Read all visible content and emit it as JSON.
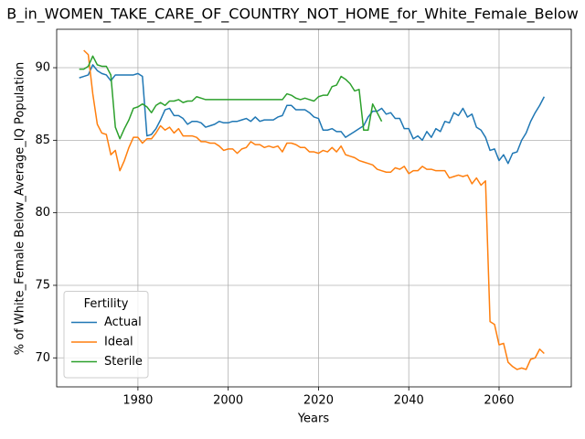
{
  "chart_data": {
    "type": "line",
    "title": "B_in_WOMEN_TAKE_CARE_OF_COUNTRY_NOT_HOME_for_White_Female_Below",
    "xlabel": "Years",
    "ylabel": "% of White_Female Below_Average_IQ Population",
    "legend_title": "Fertility",
    "legend": "lower left",
    "grid": true,
    "xlim": [
      1962,
      2076
    ],
    "ylim": [
      68,
      92.65
    ],
    "xticks": [
      1980,
      2000,
      2020,
      2040,
      2060
    ],
    "yticks": [
      70,
      75,
      80,
      85,
      90
    ],
    "x": [
      1967,
      1968,
      1969,
      1970,
      1971,
      1972,
      1973,
      1974,
      1975,
      1976,
      1977,
      1978,
      1979,
      1980,
      1981,
      1982,
      1983,
      1984,
      1985,
      1986,
      1987,
      1988,
      1989,
      1990,
      1991,
      1992,
      1993,
      1994,
      1995,
      1996,
      1997,
      1998,
      1999,
      2000,
      2001,
      2002,
      2003,
      2004,
      2005,
      2006,
      2007,
      2008,
      2009,
      2010,
      2011,
      2012,
      2013,
      2014,
      2015,
      2016,
      2017,
      2018,
      2019,
      2020,
      2021,
      2022,
      2023,
      2024,
      2025,
      2026,
      2027,
      2028,
      2029,
      2030,
      2031,
      2032,
      2033,
      2034,
      2035,
      2036,
      2037,
      2038,
      2039,
      2040,
      2041,
      2042,
      2043,
      2044,
      2045,
      2046,
      2047,
      2048,
      2049,
      2050,
      2051,
      2052,
      2053,
      2054,
      2055,
      2056,
      2057,
      2058,
      2059,
      2060,
      2061,
      2062,
      2063,
      2064,
      2065,
      2066,
      2067,
      2068,
      2069,
      2070
    ],
    "series": [
      {
        "name": "Actual",
        "color": "#1f77b4",
        "values": [
          89.3,
          89.4,
          89.5,
          90.2,
          89.8,
          89.6,
          89.5,
          89.1,
          89.5,
          89.5,
          89.5,
          89.5,
          89.5,
          89.6,
          89.4,
          85.3,
          85.4,
          85.8,
          86.4,
          87.1,
          87.2,
          86.7,
          86.7,
          86.5,
          86.1,
          86.3,
          86.3,
          86.2,
          85.9,
          86.0,
          86.1,
          86.3,
          86.2,
          86.2,
          86.3,
          86.3,
          86.4,
          86.5,
          86.3,
          86.6,
          86.3,
          86.4,
          86.4,
          86.4,
          86.6,
          86.7,
          87.4,
          87.4,
          87.1,
          87.1,
          87.1,
          86.9,
          86.6,
          86.5,
          85.7,
          85.7,
          85.8,
          85.6,
          85.6,
          85.2,
          85.4,
          85.6,
          85.8,
          86.0,
          86.6,
          87.0,
          87.0,
          87.2,
          86.8,
          86.9,
          86.5,
          86.5,
          85.8,
          85.8,
          85.1,
          85.3,
          85.0,
          85.6,
          85.2,
          85.8,
          85.6,
          86.3,
          86.2,
          86.9,
          86.7,
          87.2,
          86.6,
          86.8,
          85.9,
          85.7,
          85.2,
          84.3,
          84.4,
          83.6,
          84.0,
          83.4,
          84.1,
          84.2,
          85.0,
          85.5,
          86.3,
          86.9,
          87.4,
          88.0
        ]
      },
      {
        "name": "Ideal",
        "color": "#ff7f0e",
        "values": [
          null,
          91.2,
          90.9,
          88.2,
          86.1,
          85.5,
          85.4,
          84.0,
          84.3,
          82.9,
          83.6,
          84.5,
          85.2,
          85.2,
          84.8,
          85.1,
          85.1,
          85.5,
          86.0,
          85.7,
          85.9,
          85.5,
          85.8,
          85.3,
          85.3,
          85.3,
          85.2,
          84.9,
          84.9,
          84.8,
          84.8,
          84.6,
          84.3,
          84.4,
          84.4,
          84.1,
          84.4,
          84.5,
          84.9,
          84.7,
          84.7,
          84.5,
          84.6,
          84.5,
          84.6,
          84.2,
          84.8,
          84.8,
          84.7,
          84.5,
          84.5,
          84.2,
          84.2,
          84.1,
          84.3,
          84.2,
          84.5,
          84.2,
          84.6,
          84.0,
          83.9,
          83.8,
          83.6,
          83.5,
          83.4,
          83.3,
          83.0,
          82.9,
          82.8,
          82.8,
          83.1,
          83.0,
          83.2,
          82.7,
          82.9,
          82.9,
          83.2,
          83.0,
          83.0,
          82.9,
          82.9,
          82.9,
          82.4,
          82.5,
          82.6,
          82.5,
          82.6,
          82.0,
          82.4,
          81.9,
          82.2,
          72.5,
          72.3,
          70.9,
          71.0,
          69.7,
          69.4,
          69.2,
          69.3,
          69.2,
          69.9,
          70.0,
          70.6,
          70.3
        ]
      },
      {
        "name": "Sterile",
        "color": "#2ca02c",
        "values": [
          89.9,
          89.9,
          90.1,
          90.8,
          90.2,
          90.1,
          90.1,
          89.5,
          85.9,
          85.1,
          85.8,
          86.4,
          87.2,
          87.3,
          87.5,
          87.3,
          86.9,
          87.4,
          87.6,
          87.4,
          87.7,
          87.7,
          87.8,
          87.6,
          87.7,
          87.7,
          88.0,
          87.9,
          87.8,
          87.8,
          87.8,
          87.8,
          87.8,
          87.8,
          87.8,
          87.8,
          87.8,
          87.8,
          87.8,
          87.8,
          87.8,
          87.8,
          87.8,
          87.8,
          87.8,
          87.8,
          88.2,
          88.1,
          87.9,
          87.8,
          87.9,
          87.8,
          87.7,
          88.0,
          88.1,
          88.1,
          88.7,
          88.8,
          89.4,
          89.2,
          88.9,
          88.4,
          88.5,
          85.7,
          85.7,
          87.5,
          86.9,
          86.3,
          null,
          null,
          null,
          null,
          null,
          null,
          null,
          null,
          null,
          null,
          null,
          null,
          null,
          null,
          null,
          null,
          null,
          null,
          null,
          null,
          null,
          null,
          null,
          null,
          null,
          null,
          null,
          null,
          null,
          null,
          null,
          null,
          null,
          null,
          null,
          null
        ]
      }
    ]
  }
}
